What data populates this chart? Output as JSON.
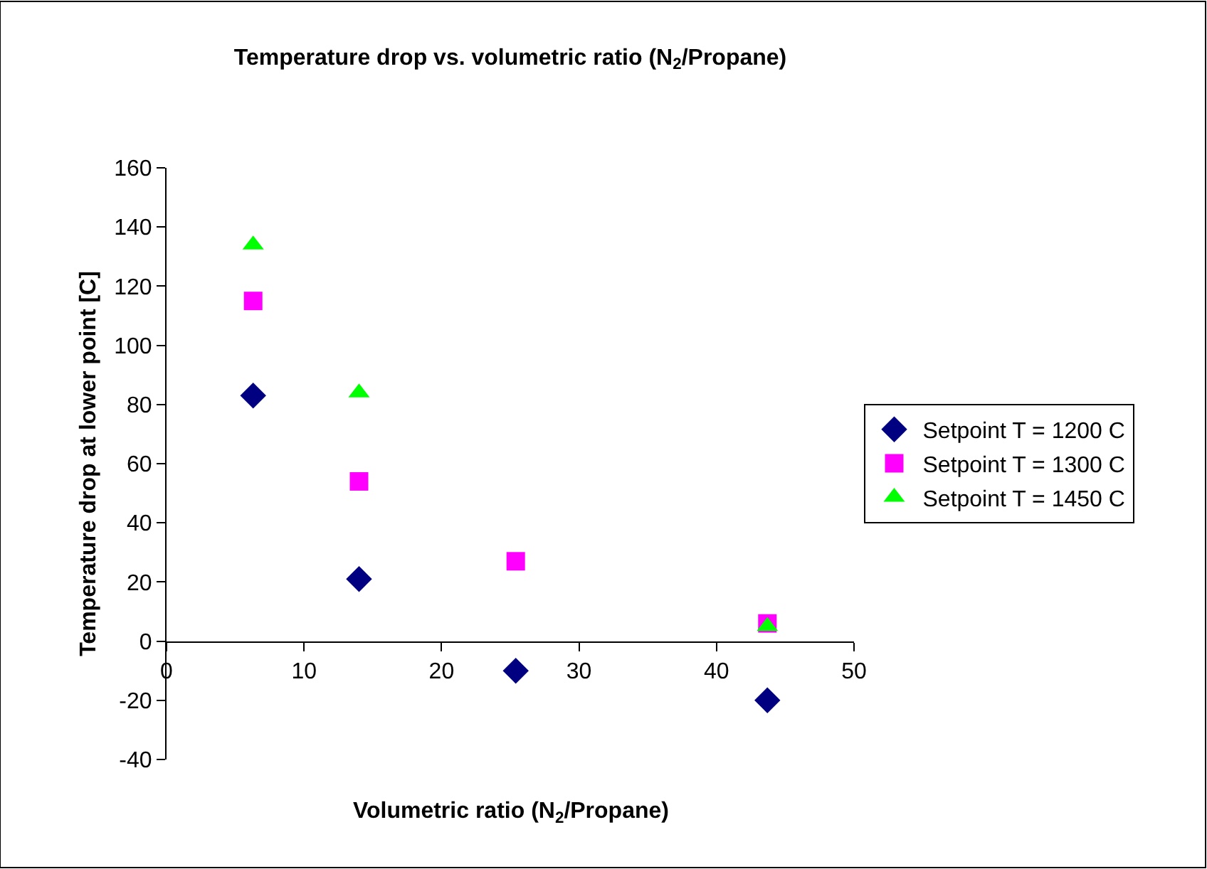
{
  "chart_data": {
    "type": "scatter",
    "title": "Temperature drop vs. volumetric ratio (N$_{2}$/Propane)",
    "xlabel": "Volumetric ratio (N$_{2}$/Propane)",
    "ylabel": "Temperature drop at lower point [C]",
    "x": [
      6.3,
      14.0,
      25.4,
      43.7
    ],
    "series": [
      {
        "name": "Setpoint T = 1200 C",
        "color": "#000080",
        "marker": "diamond",
        "values": [
          83,
          21,
          -10,
          -20
        ]
      },
      {
        "name": "Setpoint T = 1300 C",
        "color": "#ff00ff",
        "marker": "square",
        "values": [
          115,
          54,
          27,
          6
        ]
      },
      {
        "name": "Setpoint T = 1450 C",
        "color": "#00ff00",
        "marker": "triangle",
        "values": [
          134,
          84,
          null,
          5
        ]
      }
    ],
    "xlim": [
      0,
      50
    ],
    "xticks": [
      0,
      10,
      20,
      30,
      40,
      50
    ],
    "ylim": [
      -40,
      160
    ],
    "yticks": [
      -40,
      -20,
      0,
      20,
      40,
      60,
      80,
      100,
      120,
      140,
      160
    ],
    "legend": "right"
  }
}
